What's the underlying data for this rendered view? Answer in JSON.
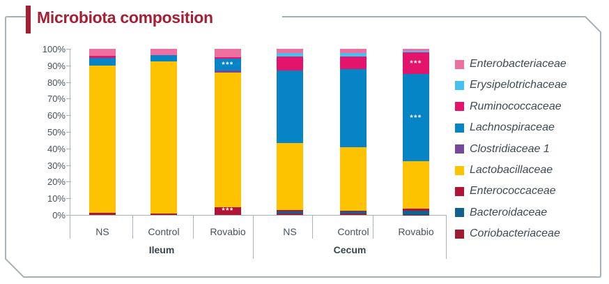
{
  "chart_data": {
    "type": "bar",
    "stacked": true,
    "title": "Microbiota composition",
    "ylim": [
      0,
      100
    ],
    "ytick_labels": [
      "0%",
      "10%",
      "20%",
      "30%",
      "40%",
      "50%",
      "60%",
      "70%",
      "80%",
      "90%",
      "100%"
    ],
    "grid": false,
    "legend_position": "right",
    "groups": [
      {
        "label": "Ileum",
        "categories": [
          "NS",
          "Control",
          "Rovabio"
        ]
      },
      {
        "label": "Cecum",
        "categories": [
          "NS",
          "Control",
          "Rovabio"
        ]
      }
    ],
    "bar_labels": [
      "NS",
      "Control",
      "Rovabio",
      "NS",
      "Control",
      "Rovabio"
    ],
    "series": [
      {
        "name": "Coriobacteriaceae",
        "color": "#9E1B32",
        "values": [
          0.5,
          0.4,
          0.5,
          0.8,
          0.7,
          0.2
        ]
      },
      {
        "name": "Bacteroidaceae",
        "color": "#11618F",
        "values": [
          0,
          0,
          0,
          1.2,
          1.2,
          2.5
        ]
      },
      {
        "name": "Enterococcaceae",
        "color": "#B01335",
        "values": [
          0.8,
          0.6,
          4.2,
          0.8,
          0.8,
          1.0
        ]
      },
      {
        "name": "Lactobacillaceae",
        "color": "#FDC300",
        "values": [
          88.5,
          91.6,
          81.2,
          40.5,
          38.0,
          28.5
        ]
      },
      {
        "name": "Clostridiaceae 1",
        "color": "#74489E",
        "values": [
          0,
          0,
          1.1,
          0,
          0,
          0
        ]
      },
      {
        "name": "Lachnospiraceae",
        "color": "#0784C6",
        "values": [
          4.6,
          3.6,
          7.0,
          43.5,
          47.2,
          52.5
        ]
      },
      {
        "name": "Ruminococcaceae",
        "color": "#E3146B",
        "values": [
          1.4,
          0,
          1.1,
          8.6,
          7.5,
          13.0
        ]
      },
      {
        "name": "Erysipelotrichaceae",
        "color": "#45C1F0",
        "values": [
          0,
          0,
          0,
          2.0,
          2.0,
          1.0
        ]
      },
      {
        "name": "Enterobacteriaceae",
        "color": "#EE6FA0",
        "values": [
          4.2,
          3.8,
          4.9,
          2.6,
          2.6,
          1.3
        ]
      }
    ],
    "annotations": [
      {
        "text": "***",
        "bar_index": 2,
        "series": "Enterococcaceae"
      },
      {
        "text": "***",
        "bar_index": 2,
        "series": "Lachnospiraceae"
      },
      {
        "text": "***",
        "bar_index": 5,
        "series": "Lachnospiraceae"
      },
      {
        "text": "***",
        "bar_index": 5,
        "series": "Ruminococcaceae"
      }
    ]
  }
}
